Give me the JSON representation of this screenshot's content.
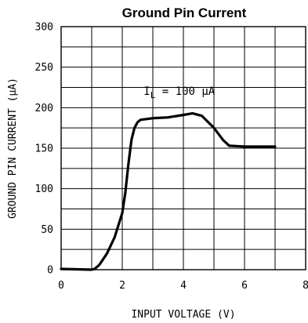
{
  "chart_data": {
    "type": "line",
    "title": "Ground Pin Current",
    "xlabel": "INPUT VOLTAGE (V)",
    "ylabel": "GROUND PIN CURRENT (μA)",
    "xlim": [
      0,
      8
    ],
    "ylim": [
      0,
      300
    ],
    "x_ticks": [
      0,
      2,
      4,
      6,
      8
    ],
    "y_ticks": [
      0,
      50,
      100,
      150,
      200,
      250,
      300
    ],
    "x_tick_labels": [
      "0",
      "2",
      "4",
      "6",
      "8"
    ],
    "y_tick_labels": [
      "0",
      "50",
      "100",
      "150",
      "200",
      "250",
      "300"
    ],
    "grid": true,
    "annotations": [
      {
        "text_main": "I",
        "text_sub": "L",
        "text_rest": " = 100 μA"
      }
    ],
    "series": [
      {
        "x": [
          0.0,
          0.5,
          1.0,
          1.1,
          1.25,
          1.5,
          1.75,
          2.0,
          2.1,
          2.2,
          2.3,
          2.4,
          2.5,
          2.6,
          2.8,
          3.0,
          3.5,
          4.0,
          4.3,
          4.6,
          5.0,
          5.3,
          5.5,
          6.0,
          6.5,
          7.0
        ],
        "y": [
          1,
          0.5,
          0,
          1,
          6,
          20,
          40,
          70,
          95,
          130,
          160,
          175,
          182,
          185,
          186,
          187,
          188,
          191,
          193,
          190,
          175,
          160,
          153,
          152,
          152,
          152
        ]
      }
    ]
  }
}
